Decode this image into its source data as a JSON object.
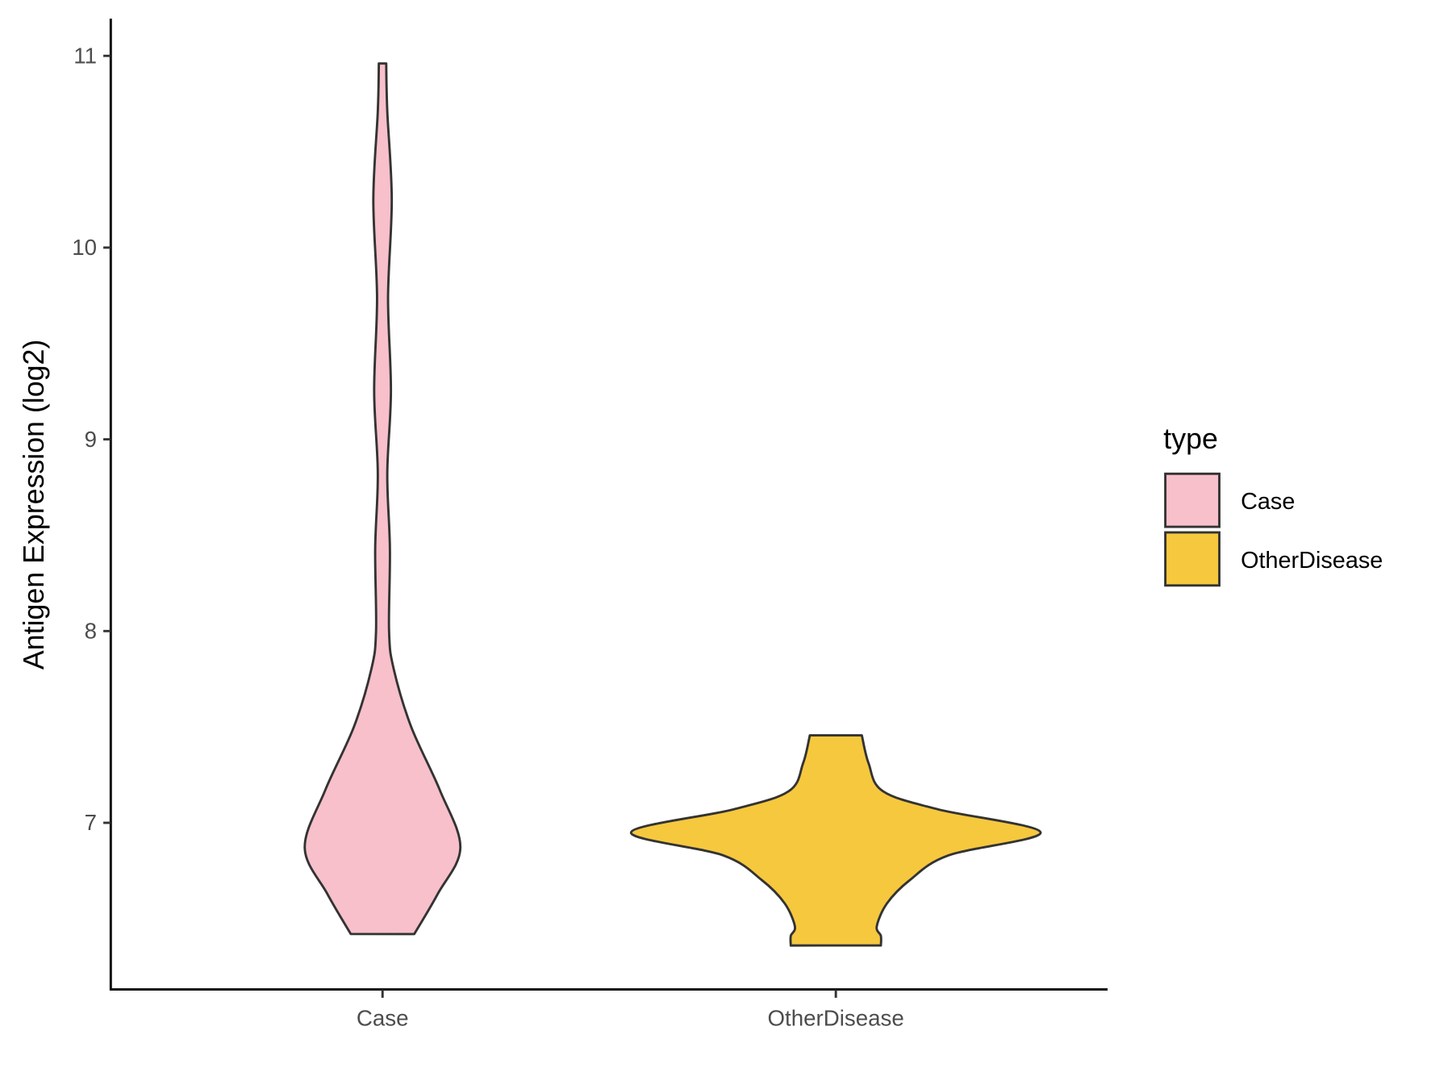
{
  "chart_data": {
    "type": "violin",
    "title": "",
    "xlabel": "",
    "ylabel": "Antigen Expression (log2)",
    "ylim": [
      6.13,
      11.2
    ],
    "yticks": [
      7,
      8,
      9,
      10,
      11
    ],
    "ytick_labels": [
      "7",
      "8",
      "9",
      "10",
      "11"
    ],
    "categories": [
      "Case",
      "OtherDisease"
    ],
    "legend": {
      "title": "type",
      "position": "right",
      "entries": [
        "Case",
        "OtherDisease"
      ]
    },
    "grid": false,
    "series": [
      {
        "name": "Case",
        "color": "#F7C0CB",
        "density_profile": [
          [
            10.96,
            0.018
          ],
          [
            10.71,
            0.023
          ],
          [
            10.25,
            0.045
          ],
          [
            9.74,
            0.027
          ],
          [
            9.25,
            0.041
          ],
          [
            8.82,
            0.023
          ],
          [
            8.43,
            0.036
          ],
          [
            8.0,
            0.032
          ],
          [
            7.8,
            0.055
          ],
          [
            7.5,
            0.14
          ],
          [
            7.17,
            0.28
          ],
          [
            6.87,
            0.38
          ],
          [
            6.63,
            0.27
          ],
          [
            6.42,
            0.155
          ]
        ]
      },
      {
        "name": "OtherDisease",
        "color": "#F6C83E",
        "density_profile": [
          [
            7.456,
            0.127
          ],
          [
            7.31,
            0.16
          ],
          [
            7.165,
            0.23
          ],
          [
            7.07,
            0.5
          ],
          [
            6.95,
            1.0
          ],
          [
            6.83,
            0.55
          ],
          [
            6.7,
            0.36
          ],
          [
            6.58,
            0.25
          ],
          [
            6.46,
            0.2
          ],
          [
            6.41,
            0.22
          ],
          [
            6.36,
            0.22
          ]
        ]
      }
    ]
  }
}
